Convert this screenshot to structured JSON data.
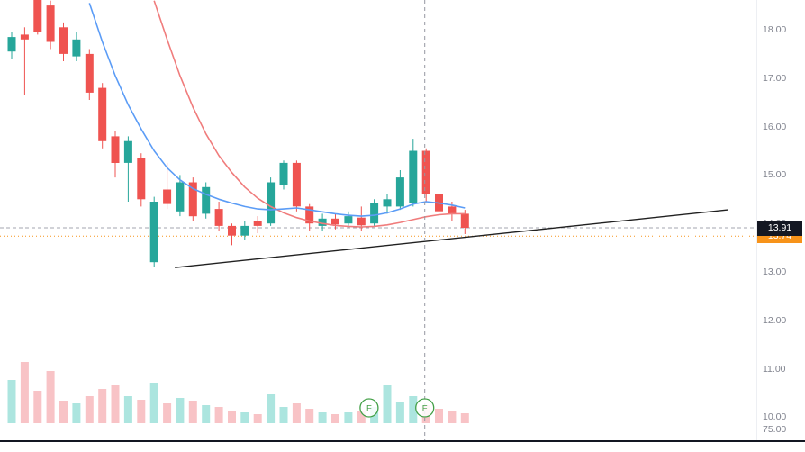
{
  "chart_data": {
    "type": "candlestick",
    "title": "",
    "price_axis": {
      "tick_labels": [
        "18.00",
        "17.00",
        "16.00",
        "15.00",
        "14.00",
        "13.00",
        "12.00",
        "11.00",
        "10.00"
      ],
      "tick_prices": [
        18,
        17,
        16,
        15,
        14,
        13,
        12,
        11,
        10
      ],
      "last_price": 13.91,
      "last_price_label": "13.91",
      "orange_line_price": 13.74,
      "orange_line_label": "13.74",
      "lower_pane_label": "75.00",
      "price_range_visible": [
        9.9,
        18.7
      ]
    },
    "candles": [
      [
        17.55,
        17.95,
        17.4,
        17.85
      ],
      [
        17.9,
        18.05,
        16.65,
        17.8
      ],
      [
        18.65,
        18.72,
        17.9,
        17.95
      ],
      [
        18.5,
        18.6,
        17.6,
        17.75
      ],
      [
        18.05,
        18.15,
        17.35,
        17.5
      ],
      [
        17.45,
        17.95,
        17.35,
        17.8
      ],
      [
        17.5,
        17.6,
        16.55,
        16.7
      ],
      [
        16.8,
        16.9,
        15.55,
        15.7
      ],
      [
        15.8,
        15.9,
        14.95,
        15.25
      ],
      [
        15.25,
        15.8,
        14.45,
        15.7
      ],
      [
        15.35,
        15.45,
        14.35,
        14.5
      ],
      [
        13.2,
        14.55,
        13.1,
        14.45
      ],
      [
        14.7,
        15.25,
        14.3,
        14.4
      ],
      [
        14.25,
        15.0,
        14.15,
        14.85
      ],
      [
        14.85,
        14.95,
        14.05,
        14.15
      ],
      [
        14.2,
        14.85,
        14.1,
        14.75
      ],
      [
        14.3,
        14.45,
        13.85,
        13.95
      ],
      [
        13.95,
        14.0,
        13.55,
        13.75
      ],
      [
        13.75,
        14.05,
        13.65,
        13.95
      ],
      [
        14.05,
        14.15,
        13.8,
        13.95
      ],
      [
        14.0,
        14.95,
        13.95,
        14.85
      ],
      [
        14.8,
        15.3,
        14.7,
        15.25
      ],
      [
        15.25,
        15.3,
        14.25,
        14.35
      ],
      [
        14.35,
        14.4,
        13.85,
        14.0
      ],
      [
        13.95,
        14.2,
        13.85,
        14.1
      ],
      [
        14.1,
        14.2,
        13.88,
        13.98
      ],
      [
        14.0,
        14.25,
        13.92,
        14.15
      ],
      [
        14.12,
        14.35,
        13.85,
        13.96
      ],
      [
        14.0,
        14.5,
        13.95,
        14.42
      ],
      [
        14.35,
        14.6,
        14.2,
        14.5
      ],
      [
        14.35,
        15.1,
        14.28,
        14.95
      ],
      [
        14.42,
        15.75,
        14.35,
        15.5
      ],
      [
        15.5,
        15.55,
        14.45,
        14.6
      ],
      [
        14.6,
        14.7,
        14.1,
        14.25
      ],
      [
        14.35,
        14.45,
        14.05,
        14.2
      ],
      [
        14.2,
        14.28,
        13.78,
        13.91
      ]
    ],
    "volumes": [
      48,
      68,
      36,
      58,
      25,
      22,
      30,
      38,
      42,
      30,
      26,
      45,
      22,
      28,
      25,
      20,
      18,
      14,
      12,
      10,
      32,
      18,
      22,
      16,
      12,
      10,
      12,
      14,
      18,
      42,
      24,
      30,
      20,
      16,
      13,
      11
    ],
    "ma_fast": {
      "points": [
        [
          6,
          18.55
        ],
        [
          7,
          17.75
        ],
        [
          8,
          17.05
        ],
        [
          9,
          16.45
        ],
        [
          10,
          15.95
        ],
        [
          11,
          15.5
        ],
        [
          12,
          15.15
        ],
        [
          13,
          14.9
        ],
        [
          14,
          14.72
        ],
        [
          15,
          14.6
        ],
        [
          16,
          14.5
        ],
        [
          17,
          14.42
        ],
        [
          18,
          14.35
        ],
        [
          19,
          14.3
        ],
        [
          20,
          14.28
        ],
        [
          21,
          14.3
        ],
        [
          22,
          14.32
        ],
        [
          23,
          14.28
        ],
        [
          24,
          14.24
        ],
        [
          25,
          14.2
        ],
        [
          26,
          14.17
        ],
        [
          27,
          14.15
        ],
        [
          28,
          14.17
        ],
        [
          29,
          14.22
        ],
        [
          30,
          14.3
        ],
        [
          31,
          14.4
        ],
        [
          32,
          14.45
        ],
        [
          33,
          14.42
        ],
        [
          34,
          14.38
        ],
        [
          35,
          14.32
        ]
      ]
    },
    "ma_slow": {
      "points": [
        [
          11,
          18.6
        ],
        [
          12,
          17.8
        ],
        [
          13,
          17.05
        ],
        [
          14,
          16.4
        ],
        [
          15,
          15.85
        ],
        [
          16,
          15.4
        ],
        [
          17,
          15.05
        ],
        [
          18,
          14.75
        ],
        [
          19,
          14.52
        ],
        [
          20,
          14.35
        ],
        [
          21,
          14.22
        ],
        [
          22,
          14.12
        ],
        [
          23,
          14.05
        ],
        [
          24,
          14.0
        ],
        [
          25,
          13.96
        ],
        [
          26,
          13.94
        ],
        [
          27,
          13.93
        ],
        [
          28,
          13.94
        ],
        [
          29,
          13.97
        ],
        [
          30,
          14.02
        ],
        [
          31,
          14.08
        ],
        [
          32,
          14.14
        ],
        [
          33,
          14.18
        ],
        [
          34,
          14.2
        ],
        [
          35,
          14.2
        ]
      ]
    },
    "trendline": {
      "i1": 12.6,
      "p1": 13.09,
      "i2": 55.3,
      "p2": 14.28
    },
    "crosshair_index": 31.9,
    "markers": [
      {
        "index": 27.6,
        "label": "F"
      },
      {
        "index": 31.9,
        "label": "F"
      }
    ],
    "colors": {
      "up": "#26a69a",
      "down": "#ef5350",
      "vol_up": "#ace5df",
      "vol_down": "#f8c3c6",
      "ma_fast": "#5b9cf6",
      "ma_slow": "#f07c7c",
      "trendline": "#202020",
      "last_price_line": "#a3a6af",
      "orange_line": "#f7931a",
      "crosshair": "#9598a1",
      "badge_bg": "#131722",
      "badge_text": "#ffffff",
      "marker_green": "#43a047",
      "separator": "#131722"
    }
  }
}
